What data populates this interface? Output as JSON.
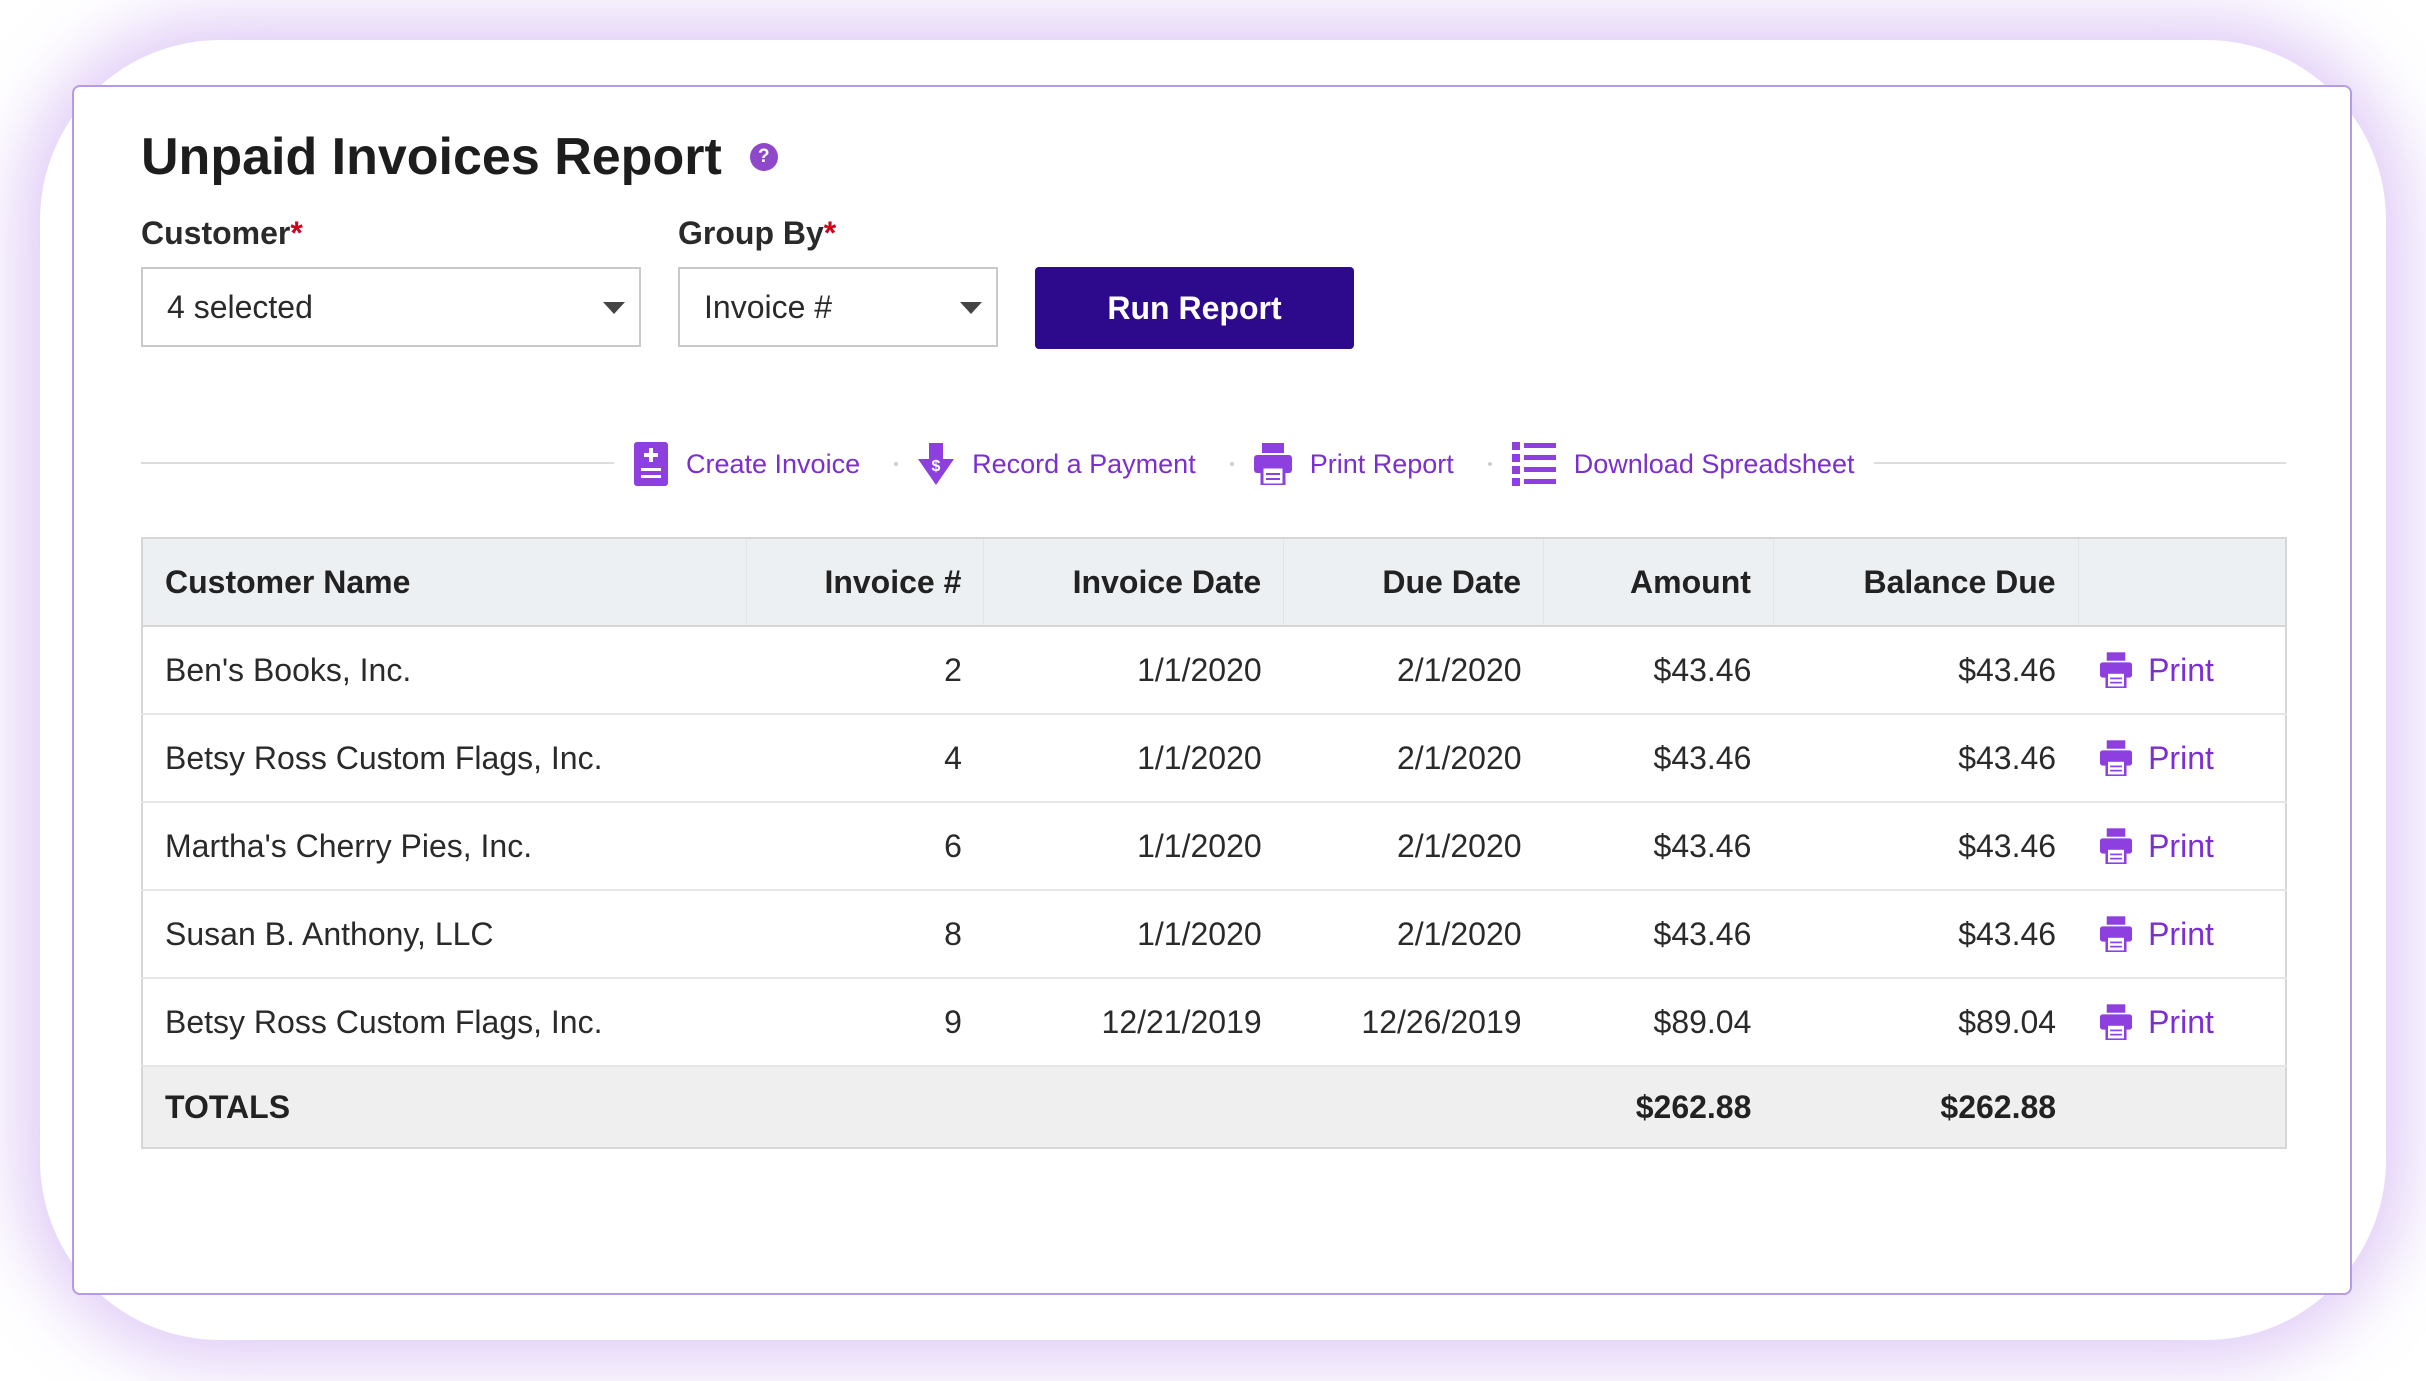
{
  "page": {
    "title": "Unpaid Invoices Report",
    "help_icon": "question-circle-icon"
  },
  "filters": {
    "customer_label": "Customer",
    "customer_value": "4 selected",
    "group_by_label": "Group By",
    "group_by_value": "Invoice #",
    "required_marker": "*",
    "run_label": "Run Report"
  },
  "actions": {
    "create_invoice": "Create Invoice",
    "record_payment": "Record a Payment",
    "print_report": "Print Report",
    "download_spreadsheet": "Download Spreadsheet"
  },
  "table": {
    "columns": [
      "Customer Name",
      "Invoice #",
      "Invoice Date",
      "Due Date",
      "Amount",
      "Balance Due"
    ],
    "print_label": "Print",
    "rows": [
      {
        "customer": "Ben's Books, Inc.",
        "invoice": "2",
        "invoice_date": "1/1/2020",
        "due_date": "2/1/2020",
        "amount": "$43.46",
        "balance": "$43.46"
      },
      {
        "customer": "Betsy Ross Custom Flags, Inc.",
        "invoice": "4",
        "invoice_date": "1/1/2020",
        "due_date": "2/1/2020",
        "amount": "$43.46",
        "balance": "$43.46"
      },
      {
        "customer": "Martha's Cherry Pies, Inc.",
        "invoice": "6",
        "invoice_date": "1/1/2020",
        "due_date": "2/1/2020",
        "amount": "$43.46",
        "balance": "$43.46"
      },
      {
        "customer": "Susan B. Anthony, LLC",
        "invoice": "8",
        "invoice_date": "1/1/2020",
        "due_date": "2/1/2020",
        "amount": "$43.46",
        "balance": "$43.46"
      },
      {
        "customer": "Betsy Ross Custom Flags, Inc.",
        "invoice": "9",
        "invoice_date": "12/21/2019",
        "due_date": "12/26/2019",
        "amount": "$89.04",
        "balance": "$89.04"
      }
    ],
    "totals": {
      "label": "TOTALS",
      "amount": "$262.88",
      "balance": "$262.88"
    }
  },
  "colors": {
    "accent": "#7b2fd0",
    "button": "#2d0a8c",
    "border": "#b69be4",
    "required": "#d0021b"
  }
}
